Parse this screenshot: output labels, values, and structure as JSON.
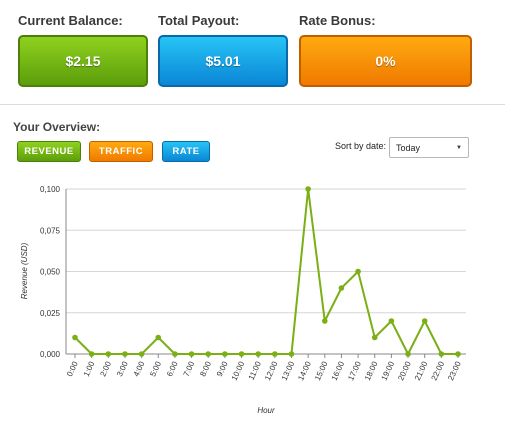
{
  "stats": {
    "current_balance": {
      "label": "Current Balance:",
      "value": "$2.15"
    },
    "total_payout": {
      "label": "Total Payout:",
      "value": "$5.01"
    },
    "rate_bonus": {
      "label": "Rate Bonus:",
      "value": "0%"
    }
  },
  "overview": {
    "title": "Your Overview:",
    "tabs": [
      "REVENUE",
      "TRAFFIC",
      "RATE"
    ],
    "sort_label": "Sort by date:",
    "sort_value": "Today"
  },
  "colors": {
    "line": "#7aaf16",
    "green": "#6cb411",
    "blue": "#1aa4e8",
    "orange": "#f68a00"
  },
  "chart_data": {
    "type": "line",
    "title": "",
    "xlabel": "Hour",
    "ylabel": "Revenue (USD)",
    "x": [
      "0:00",
      "1:00",
      "2:00",
      "3:00",
      "4:00",
      "5:00",
      "6:00",
      "7:00",
      "8:00",
      "9:00",
      "10:00",
      "11:00",
      "12:00",
      "13:00",
      "14:00",
      "15:00",
      "16:00",
      "17:00",
      "18:00",
      "19:00",
      "20:00",
      "21:00",
      "22:00",
      "23:00"
    ],
    "values": [
      0.01,
      0,
      0,
      0,
      0,
      0.01,
      0,
      0,
      0,
      0,
      0,
      0,
      0,
      0,
      0.1,
      0.02,
      0.04,
      0.05,
      0.01,
      0.02,
      0,
      0.02,
      0,
      0
    ],
    "ylim": [
      0,
      0.1
    ],
    "yticks": [
      "0,000",
      "0,025",
      "0,050",
      "0,075",
      "0,100"
    ],
    "grid": true,
    "legend": "none"
  }
}
